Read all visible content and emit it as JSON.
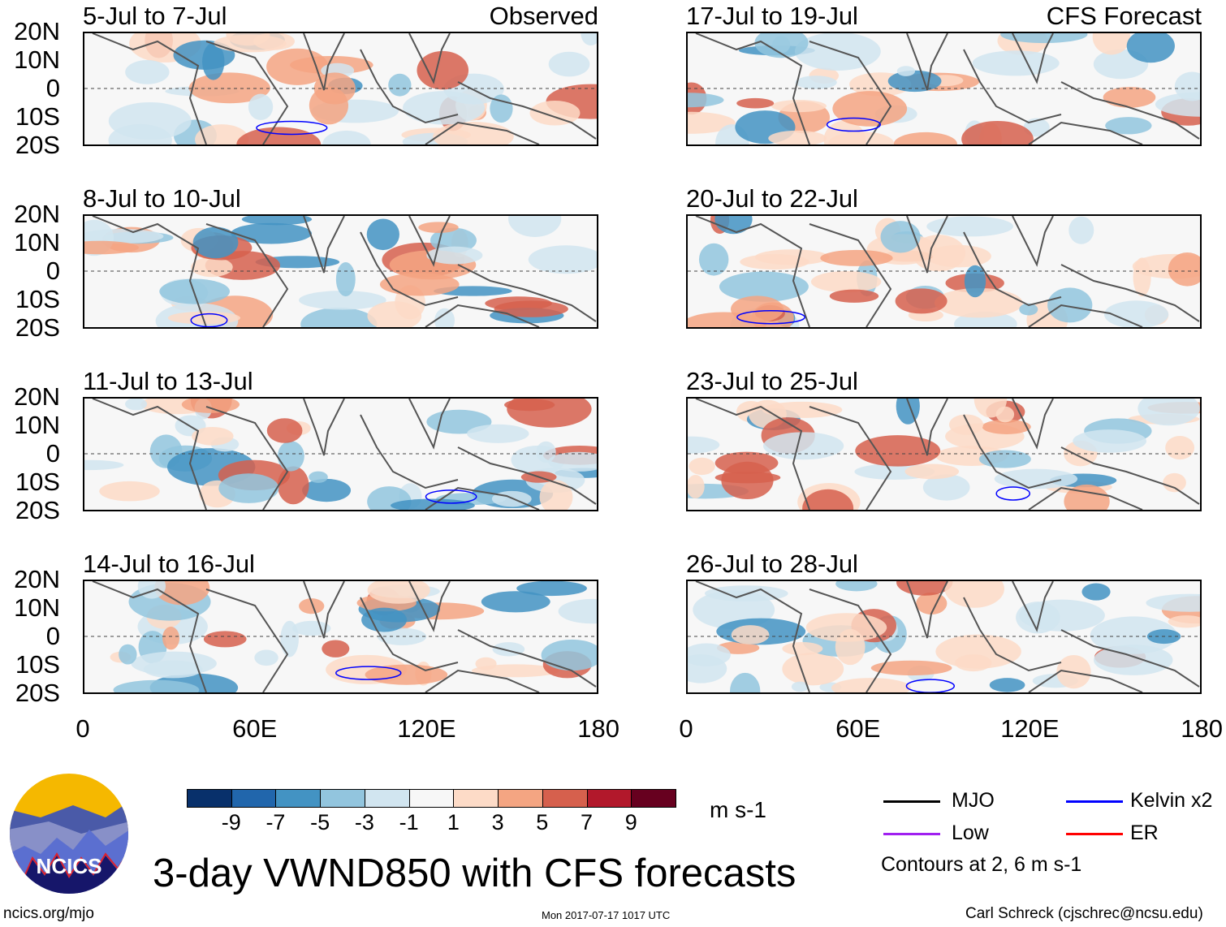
{
  "panels": [
    {
      "title": "5-Jul to 7-Jul",
      "tag": "Observed",
      "seed": 1
    },
    {
      "title": "17-Jul to 19-Jul",
      "tag": "CFS Forecast",
      "seed": 2
    },
    {
      "title": "8-Jul to 10-Jul",
      "tag": "",
      "seed": 3
    },
    {
      "title": "20-Jul to 22-Jul",
      "tag": "",
      "seed": 4
    },
    {
      "title": "11-Jul to 13-Jul",
      "tag": "",
      "seed": 5
    },
    {
      "title": "23-Jul to 25-Jul",
      "tag": "",
      "seed": 6
    },
    {
      "title": "14-Jul to 16-Jul",
      "tag": "",
      "seed": 7
    },
    {
      "title": "26-Jul to 28-Jul",
      "tag": "",
      "seed": 8
    }
  ],
  "lat_labels": [
    "20N",
    "10N",
    "0",
    "10S",
    "20S"
  ],
  "lon_labels": [
    "0",
    "60E",
    "120E",
    "180"
  ],
  "colorbar": {
    "colors": [
      "#08306b",
      "#2166ac",
      "#4393c3",
      "#92c5de",
      "#d1e5f0",
      "#f7f7f7",
      "#fddbc7",
      "#f4a582",
      "#d6604d",
      "#b2182b",
      "#67001f"
    ],
    "labels": [
      "-9",
      "-7",
      "-5",
      "-3",
      "-1",
      "1",
      "3",
      "5",
      "7",
      "9"
    ],
    "units": "m s-1"
  },
  "legend": {
    "items": [
      {
        "label": "MJO",
        "color": "#000000"
      },
      {
        "label": "Kelvin x2",
        "color": "#0000ff"
      },
      {
        "label": "Low",
        "color": "#a020f0"
      },
      {
        "label": "ER",
        "color": "#ff0000"
      }
    ],
    "contours": "Contours at 2, 6 m s-1"
  },
  "title": "3-day VWND850 with CFS forecasts",
  "logo": "NCICS",
  "footer": {
    "url": "ncics.org/mjo",
    "timestamp": "Mon 2017-07-17 1017 UTC",
    "credit": "Carl Schreck (cjschrec@ncsu.edu)"
  }
}
